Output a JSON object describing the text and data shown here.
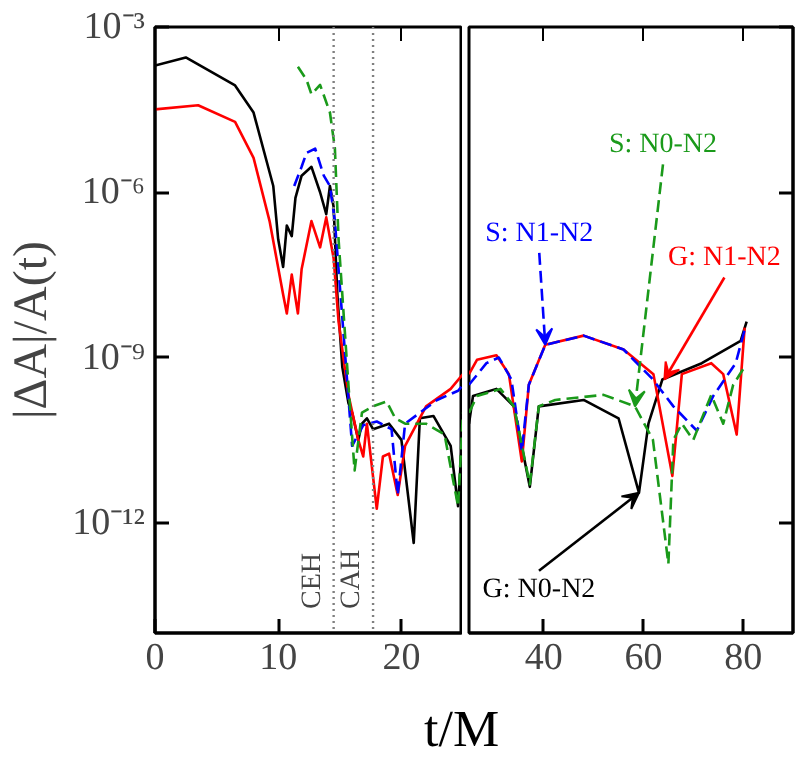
{
  "chart_data": [
    {
      "type": "line",
      "ylabel": "|ΔA|/A(t)",
      "xlabel": "t/M",
      "log": true,
      "grid": false,
      "xlim": [
        0,
        25
      ],
      "xticks": [
        0,
        10,
        20
      ],
      "ylim": [
        1e-14,
        0.001
      ],
      "yticks": [
        {
          "value": 0.001,
          "label": "10⁻³"
        },
        {
          "value": 1e-06,
          "label": "10⁻⁶"
        },
        {
          "value": 1e-09,
          "label": "10⁻⁹"
        },
        {
          "value": 1e-12,
          "label": "10⁻¹²"
        }
      ],
      "ref_lines": [
        {
          "axis": "x",
          "value": 14.5,
          "label": "CEH",
          "color": "#808080",
          "line_style": "dotted"
        },
        {
          "axis": "x",
          "value": 17.7,
          "label": "CAH",
          "color": "#808080",
          "line_style": "dotted"
        }
      ],
      "series": [
        {
          "color": "#000000",
          "line_style": "solid",
          "x": [
            0,
            2.5,
            6.5,
            8,
            9.6,
            10,
            10.4,
            10.7,
            11.1,
            11.4,
            11.9,
            12.7,
            13.4,
            13.9,
            14.2,
            14.5,
            14.8,
            15.2,
            15.7,
            16,
            16.5,
            16.8,
            17.2,
            17.7,
            19,
            20,
            21,
            21.5,
            22.6,
            24,
            24.6,
            25
          ],
          "values": [
            0.0002,
            0.00028,
            8.7e-05,
            2.8e-05,
            1.3e-06,
            1.4e-07,
            4.4e-08,
            2.5e-07,
            1.6e-07,
            7.9e-07,
            2e-06,
            2.9e-06,
            1e-06,
            4e-07,
            1.3e-06,
            5.4e-07,
            1.4e-08,
            6.8e-10,
            1.5e-10,
            1e-10,
            3.2e-11,
            6.3e-11,
            7.9e-11,
            5e-11,
            6.3e-11,
            3.2e-11,
            4.3e-13,
            7.9e-11,
            8.7e-11,
            2.5e-11,
            2e-12,
            6.3e-11
          ]
        },
        {
          "color": "#ff0000",
          "line_style": "solid",
          "x": [
            0,
            3.5,
            6.5,
            8,
            9.3,
            10.4,
            10.7,
            11.1,
            11.6,
            11.9,
            12.7,
            13.4,
            13.9,
            14.5,
            14.9,
            15.7,
            16.5,
            16.9,
            17.2,
            18,
            18.5,
            19,
            19.7,
            20.3,
            22,
            24,
            25
          ],
          "values": [
            3.2e-05,
            3.8e-05,
            1.9e-05,
            4.2e-06,
            3e-07,
            1.4e-08,
            6.3e-09,
            3.2e-08,
            6.3e-09,
            4e-08,
            3e-07,
            1e-07,
            3.5e-07,
            6.3e-08,
            4.5e-09,
            2.1e-10,
            3.2e-11,
            1.6e-11,
            6.3e-11,
            1.8e-12,
            1.6e-11,
            1.8e-11,
            3.2e-12,
            2.5e-11,
            1.3e-10,
            2.7e-10,
            5e-10
          ]
        },
        {
          "color": "#0000ff",
          "line_style": "dashed",
          "x": [
            11.3,
            11.9,
            12.3,
            13,
            13.7,
            14.2,
            14.6,
            15.4,
            16,
            16.9,
            18,
            19.2,
            19.7,
            20.3,
            22.9,
            24.6,
            25
          ],
          "values": [
            1.3e-06,
            2.9e-06,
            5.2e-06,
            6.2e-06,
            2e-06,
            1.3e-06,
            3e-07,
            1.4e-09,
            2.5e-11,
            5.9e-11,
            6.9e-11,
            5e-11,
            3.2e-12,
            6.3e-11,
            1.7e-10,
            2.5e-10,
            3.2e-10
          ]
        },
        {
          "color": "#1a9a1a",
          "line_style": "dashed",
          "x": [
            11.6,
            12.3,
            12.7,
            13.4,
            14.2,
            14.6,
            14.9,
            15.7,
            16.2,
            16.8,
            17.7,
            18.8,
            19.5,
            20.3,
            22,
            23.5,
            24.6,
            25
          ],
          "values": [
            0.00019,
            0.00011,
            6e-05,
            8.9e-05,
            2.8e-05,
            6.3e-06,
            1.4e-07,
            3.2e-10,
            8.9e-12,
            1e-10,
            1.3e-10,
            1.6e-10,
            7.9e-11,
            6.3e-11,
            6.3e-11,
            4e-11,
            2e-12,
            1e-10
          ]
        }
      ]
    },
    {
      "type": "line",
      "log": true,
      "grid": false,
      "tick_labels": "x",
      "xlim": [
        25,
        90
      ],
      "xticks": [
        40,
        60,
        80
      ],
      "ylim": [
        1e-14,
        0.001
      ],
      "annotations": [
        {
          "text": "G: N0-N2",
          "x": 59.1,
          "y": 3.5e-12
        },
        {
          "text": "G: N1-N2",
          "x": 64.2,
          "y": 4e-10
        },
        {
          "text": "S: N1-N2",
          "x": 40.3,
          "y": 1.7e-09
        },
        {
          "text": "S: N0-N2",
          "x": 58.3,
          "y": 1.3e-10
        }
      ],
      "series": [
        {
          "color": "#000000",
          "line_style": "solid",
          "x": [
            25,
            25.8,
            30.5,
            34,
            37.2,
            39,
            48,
            55,
            59.1,
            61,
            63.8,
            71.7,
            79.5,
            80.7
          ],
          "values": [
            6.3e-11,
            2e-10,
            2.7e-10,
            1.3e-10,
            4.5e-12,
            1.3e-10,
            1.7e-10,
            7.9e-11,
            3.5e-12,
            6.3e-11,
            4e-10,
            7.9e-10,
            2e-09,
            4.5e-09
          ]
        },
        {
          "color": "#ff0000",
          "line_style": "solid",
          "x": [
            25,
            26.6,
            30.5,
            33,
            35.6,
            37,
            40.3,
            48,
            56,
            62,
            65.8,
            67.7,
            73.6,
            76,
            78.7,
            80.3
          ],
          "values": [
            5e-10,
            9.1e-10,
            1.1e-09,
            5e-10,
            1.3e-11,
            3.2e-10,
            1.7e-09,
            2.5e-09,
            1.4e-09,
            5e-10,
            7.1e-12,
            5e-10,
            7.9e-10,
            5e-10,
            4e-11,
            3.5e-09
          ]
        },
        {
          "color": "#0000ff",
          "line_style": "dashed",
          "x": [
            25,
            28.5,
            31,
            33.5,
            35.6,
            37,
            40.3,
            48,
            56,
            61.9,
            66,
            70.7,
            74,
            78.5,
            80.3
          ],
          "values": [
            3.2e-10,
            7.9e-10,
            1e-09,
            4e-10,
            2e-11,
            3.2e-10,
            1.7e-09,
            2.5e-09,
            1.4e-09,
            4e-10,
            1.3e-10,
            4.7e-11,
            2e-10,
            7.9e-10,
            3.2e-09
          ]
        },
        {
          "color": "#1a9a1a",
          "line_style": "dashed",
          "x": [
            25,
            26.6,
            31.3,
            34,
            37.2,
            39,
            42.3,
            52,
            58.3,
            61.9,
            65,
            66,
            67.7,
            70,
            73.6,
            76,
            78,
            80.3
          ],
          "values": [
            1e-10,
            2e-10,
            2.7e-10,
            1.3e-10,
            5e-12,
            1.3e-10,
            1.7e-10,
            2.1e-10,
            1.3e-10,
            3.2e-11,
            1.8e-13,
            3.2e-11,
            6.3e-11,
            3.2e-11,
            2.1e-10,
            6.3e-11,
            3.2e-10,
            6.8e-10
          ]
        }
      ]
    }
  ]
}
